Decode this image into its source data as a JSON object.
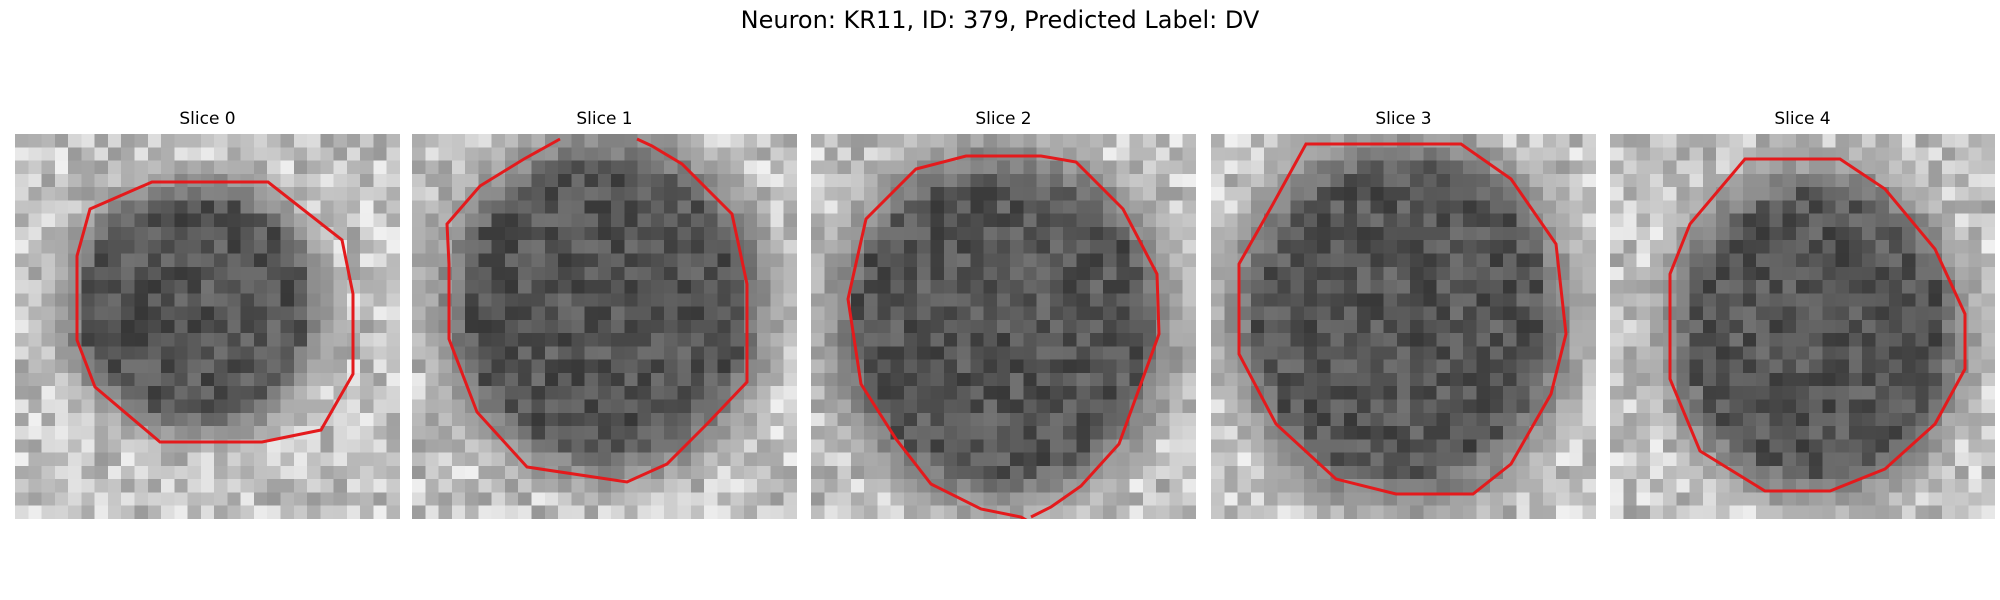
{
  "figure": {
    "title": "Neuron: KR11, ID: 379, Predicted Label: DV"
  },
  "panels": [
    {
      "title": "Slice 0"
    },
    {
      "title": "Slice 1"
    },
    {
      "title": "Slice 2"
    },
    {
      "title": "Slice 3"
    },
    {
      "title": "Slice 4"
    }
  ],
  "colors": {
    "contour": "#e41a1c",
    "background": "#ffffff"
  }
}
